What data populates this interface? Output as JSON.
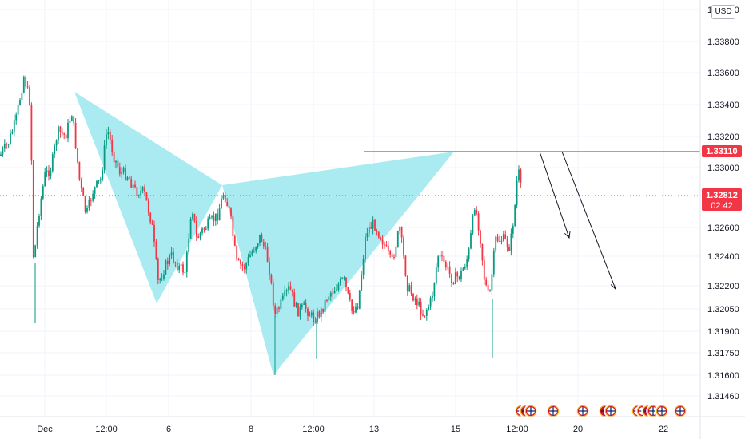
{
  "currency_label": "USD",
  "price_axis": {
    "ticks": [
      "1.34000",
      "1.33800",
      "1.33600",
      "1.33400",
      "1.33200",
      "1.33000",
      "1.32600",
      "1.32400",
      "1.32200",
      "1.32050",
      "1.31900",
      "1.31750",
      "1.31600",
      "1.31460"
    ]
  },
  "time_axis": {
    "ticks": [
      "Dec",
      "12:00",
      "6",
      "8",
      "12:00",
      "13",
      "15",
      "12:00",
      "20",
      "22"
    ]
  },
  "resistance_tag": {
    "value": "1.33110",
    "color": "#f23645"
  },
  "current_price_tag": {
    "value": "1.32812",
    "countdown": "02:42",
    "color": "#f23645"
  },
  "colors": {
    "up": "#089981",
    "down": "#f23645",
    "pattern": "#9be7f0",
    "line": "#f23645"
  },
  "event_icons": [
    "flag-icon",
    "flag-icon",
    "flag-icon",
    "flag-icon",
    "flag-icon",
    "flag-icon",
    "flag-icon",
    "flag-icon",
    "flag-icon",
    "flag-icon",
    "flag-icon",
    "flag-icon",
    "flag-icon"
  ],
  "chart_data": {
    "type": "candlestick",
    "instrument_quote": "USD",
    "y_range": [
      1.3146,
      1.34
    ],
    "resistance_level": 1.3311,
    "current_price": 1.32812,
    "close_path": [
      [
        "Dec 4 00:00",
        1.332
      ],
      [
        "Dec 4 02:00",
        1.333
      ],
      [
        "Dec 4 04:00",
        1.3355
      ],
      [
        "Dec 4 06:00",
        1.3368
      ],
      [
        "Dec 4 08:00",
        1.3345
      ],
      [
        "Dec 4 10:00",
        1.323
      ],
      [
        "Dec 4 12:00",
        1.327
      ],
      [
        "Dec 4 14:00",
        1.33
      ],
      [
        "Dec 4 16:00",
        1.332
      ],
      [
        "Dec 4 18:00",
        1.331
      ],
      [
        "Dec 4 20:00",
        1.333
      ],
      [
        "Dec 4 22:00",
        1.3345
      ],
      [
        "Dec 5 00:00",
        1.33
      ],
      [
        "Dec 5 02:00",
        1.327
      ],
      [
        "Dec 5 04:00",
        1.3285
      ],
      [
        "Dec 5 06:00",
        1.33
      ],
      [
        "Dec 5 08:00",
        1.333
      ],
      [
        "Dec 5 10:00",
        1.3305
      ],
      [
        "Dec 5 12:00",
        1.329
      ],
      [
        "Dec 5 14:00",
        1.3285
      ],
      [
        "Dec 5 16:00",
        1.327
      ],
      [
        "Dec 5 18:00",
        1.324
      ],
      [
        "Dec 5 20:00",
        1.322
      ],
      [
        "Dec 5 22:00",
        1.3232
      ],
      [
        "Dec 6 00:00",
        1.323
      ],
      [
        "Dec 6 02:00",
        1.3245
      ],
      [
        "Dec 6 04:00",
        1.3275
      ],
      [
        "Dec 6 06:00",
        1.3265
      ],
      [
        "Dec 6 08:00",
        1.327
      ],
      [
        "Dec 6 10:00",
        1.328
      ],
      [
        "Dec 6 12:00",
        1.3285
      ],
      [
        "Dec 6 14:00",
        1.3275
      ],
      [
        "Dec 6 16:00",
        1.3255
      ],
      [
        "Dec 6 18:00",
        1.324
      ],
      [
        "Dec 6 20:00",
        1.3225
      ],
      [
        "Dec 6 22:00",
        1.325
      ],
      [
        "Dec 7 00:00",
        1.3255
      ],
      [
        "Dec 7 02:00",
        1.3245
      ],
      [
        "Dec 7 04:00",
        1.3245
      ],
      [
        "Dec 7 06:00",
        1.321
      ],
      [
        "Dec 7 08:00",
        1.318
      ],
      [
        "Dec 7 10:00",
        1.32
      ],
      [
        "Dec 7 12:00",
        1.319
      ],
      [
        "Dec 7 14:00",
        1.3195
      ],
      [
        "Dec 7 16:00",
        1.3215
      ],
      [
        "Dec 7 18:00",
        1.3225
      ],
      [
        "Dec 7 20:00",
        1.3215
      ],
      [
        "Dec 7 22:00",
        1.3205
      ],
      [
        "Dec 8 00:00",
        1.32
      ],
      [
        "Dec 8 02:00",
        1.3265
      ],
      [
        "Dec 8 04:00",
        1.3258
      ],
      [
        "Dec 8 06:00",
        1.325
      ],
      [
        "Dec 8 08:00",
        1.324
      ],
      [
        "Dec 8 10:00",
        1.3225
      ],
      [
        "Dec 8 12:00",
        1.322
      ],
      [
        "Dec 8 14:00",
        1.3245
      ],
      [
        "Dec 8 16:00",
        1.325
      ],
      [
        "Dec 8 18:00",
        1.323
      ],
      [
        "Dec 8 20:00",
        1.321
      ],
      [
        "Dec 8 22:00",
        1.3225
      ],
      [
        "Dec 9 00:00",
        1.3215
      ],
      [
        "Dec 9 02:00",
        1.323
      ],
      [
        "Dec 9 04:00",
        1.3225
      ],
      [
        "Dec 9 06:00",
        1.322
      ],
      [
        "Dec 9 08:00",
        1.3225
      ]
    ],
    "harmonic_pattern": {
      "type": "polygon",
      "points": [
        [
          "Dec 4 14:00",
          1.335
        ],
        [
          "Dec 6 00:00",
          1.3205
        ],
        [
          "Dec 6 22:00",
          1.3286
        ],
        [
          "Dec 8 00:00",
          1.316
        ],
        [
          "Dec 9 14:00",
          1.3311
        ]
      ],
      "color": "#9be7f0"
    },
    "projection_arrows": [
      {
        "from": [
          "Dec 10 16:00",
          1.3311
        ],
        "to": [
          "Dec 11 10:00",
          1.3258
        ]
      },
      {
        "from": [
          "Dec 10 22:00",
          1.3311
        ],
        "to": [
          "Dec 12 06:00",
          1.3218
        ]
      }
    ]
  }
}
